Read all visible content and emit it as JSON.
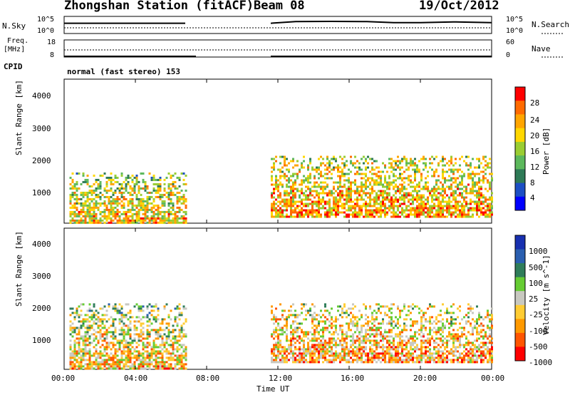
{
  "header": {
    "title": "Zhongshan Station (fitACF)",
    "beam": "Beam 08",
    "date": "19/Oct/2012"
  },
  "noise_panel": {
    "left_label": "N.Sky",
    "left_ticks": [
      "10^5",
      "10^0"
    ],
    "right_ticks": [
      "10^5",
      "10^0"
    ],
    "right_label": "N.Search"
  },
  "freq_panel": {
    "left_label_1": "Freq.",
    "left_label_2": "[MHz]",
    "left_ticks": [
      "18",
      "8"
    ],
    "right_ticks": [
      "60",
      "0"
    ],
    "right_label": "Nave"
  },
  "cpid": {
    "label": "CPID",
    "value": "normal (fast stereo) 153"
  },
  "power_panel": {
    "ylabel": "Slant Range [km]",
    "yticks": [
      "4000",
      "3000",
      "2000",
      "1000"
    ],
    "colorbar_label": "Power [dB]",
    "colorbar_ticks": [
      "28",
      "24",
      "20",
      "16",
      "12",
      "8",
      "4"
    ],
    "colors": [
      "#0000ff",
      "#1c4fc4",
      "#2e7a56",
      "#5cb85c",
      "#9acd32",
      "#ffd700",
      "#ffa500",
      "#ff6a00",
      "#ff0000"
    ]
  },
  "velocity_panel": {
    "ylabel": "Slant Range [km]",
    "yticks": [
      "4000",
      "3000",
      "2000",
      "1000"
    ],
    "colorbar_label": "Velocity [m s^-1]",
    "colorbar_ticks": [
      "1000",
      "500",
      "100",
      "25",
      "-25",
      "-100",
      "-500",
      "-1000"
    ],
    "colors": [
      "#1830b0",
      "#2a5fb0",
      "#2f7d5a",
      "#66cc33",
      "#c8c8c0",
      "#ffcc33",
      "#ff9900",
      "#ff5500",
      "#ff0000"
    ]
  },
  "xaxis": {
    "label": "Time UT",
    "ticks": [
      "00:00",
      "04:00",
      "08:00",
      "12:00",
      "16:00",
      "20:00",
      "00:00"
    ]
  },
  "chart_data": [
    {
      "type": "line",
      "panel": "noise",
      "x_range_hours": [
        0,
        24
      ],
      "data_gap_hours": [
        6.8,
        11.6
      ],
      "series": [
        {
          "x": [
            0,
            6.8
          ],
          "y": [
            1000,
            1000
          ]
        },
        {
          "x": [
            11.6,
            13,
            15,
            17,
            18.5,
            20,
            22,
            24
          ],
          "y": [
            1000,
            3000,
            3500,
            3000,
            1500,
            1500,
            2500,
            1500
          ]
        }
      ]
    },
    {
      "type": "line",
      "panel": "frequency",
      "x_range_hours": [
        0,
        24
      ],
      "series": [
        {
          "x": [
            0,
            7.4
          ],
          "y": [
            8,
            8
          ]
        },
        {
          "x": [
            11.6,
            24
          ],
          "y": [
            8,
            8
          ]
        }
      ]
    },
    {
      "type": "heatmap",
      "panel": "power",
      "x_range_hours": [
        0,
        24
      ],
      "y_range_km": [
        180,
        4500
      ],
      "z_range_db": [
        0,
        30
      ],
      "echo_regions": [
        {
          "t_start": 0.3,
          "t_end": 6.8,
          "r_min": 200,
          "r_max": 1700,
          "level_db": 14
        },
        {
          "t_start": 11.6,
          "t_end": 24,
          "r_min": 400,
          "r_max": 2200,
          "level_db": 16
        }
      ]
    },
    {
      "type": "heatmap",
      "panel": "velocity",
      "x_range_hours": [
        0,
        24
      ],
      "y_range_km": [
        180,
        4500
      ],
      "z_range_ms": [
        -1000,
        1000
      ],
      "echo_regions": [
        {
          "t_start": 0.3,
          "t_end": 6.8,
          "r_min": 200,
          "r_max": 2200,
          "velocity": -100
        },
        {
          "t_start": 11.6,
          "t_end": 24,
          "r_min": 400,
          "r_max": 2200,
          "velocity": 25
        }
      ]
    }
  ]
}
